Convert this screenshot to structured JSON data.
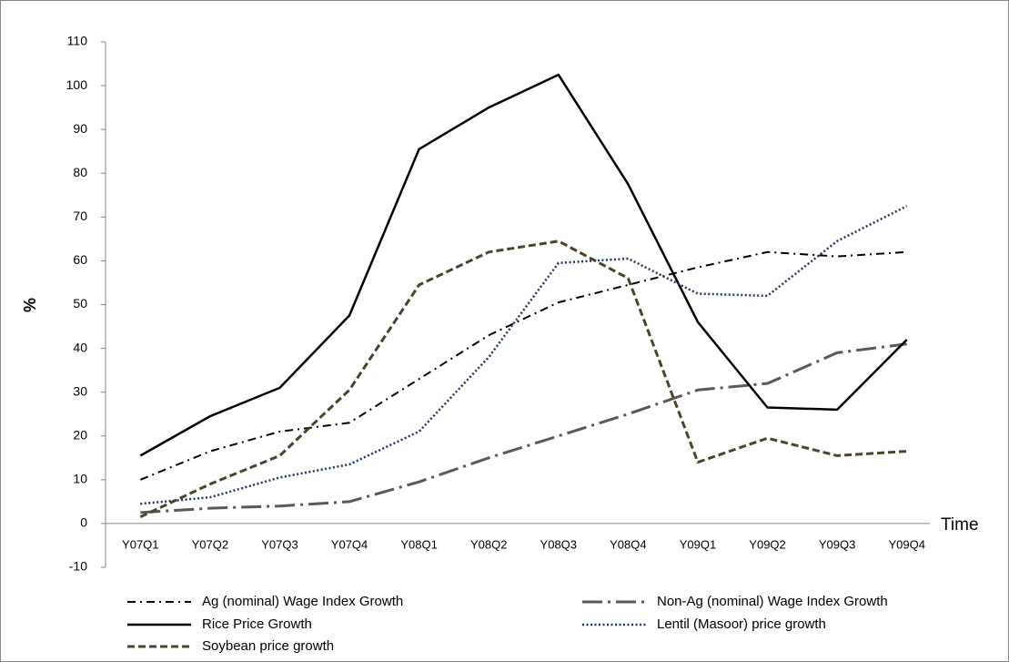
{
  "chart_data": {
    "type": "line",
    "ylabel": "%",
    "xlabel": "Time",
    "categories": [
      "Y07Q1",
      "Y07Q2",
      "Y07Q3",
      "Y07Q4",
      "Y08Q1",
      "Y08Q2",
      "Y08Q3",
      "Y08Q4",
      "Y09Q1",
      "Y09Q2",
      "Y09Q3",
      "Y09Q4"
    ],
    "series": [
      {
        "name": "Ag (nominal) Wage Index Growth",
        "color": "#000000",
        "values": [
          10,
          16.5,
          21,
          23,
          33,
          43,
          50.5,
          54.5,
          58.5,
          62,
          61,
          62
        ]
      },
      {
        "name": "Non-Ag (nominal) Wage Index Growth",
        "color": "#595959",
        "values": [
          2.5,
          3.5,
          4,
          5,
          9.5,
          15,
          20,
          25,
          30.5,
          32,
          39,
          41
        ]
      },
      {
        "name": "Rice Price Growth",
        "color": "#000000",
        "values": [
          15.5,
          24.5,
          31,
          47.5,
          85.5,
          95,
          102.5,
          77.5,
          46,
          26.5,
          26,
          42
        ]
      },
      {
        "name": "Lentil (Masoor) price growth",
        "color": "#1f3864",
        "values": [
          4.5,
          6,
          10.5,
          13.5,
          21,
          38,
          59.5,
          60.5,
          52.5,
          52,
          64.5,
          72.5
        ]
      },
      {
        "name": "Soybean price growth",
        "color": "#4d4329",
        "values": [
          1.5,
          9,
          15.5,
          30.5,
          54.5,
          62,
          64.5,
          56,
          14,
          19.5,
          15.5,
          16.5
        ]
      }
    ],
    "ylim": [
      -10,
      110
    ],
    "yticks": [
      -10,
      0,
      10,
      20,
      30,
      40,
      50,
      60,
      70,
      80,
      90,
      100,
      110
    ],
    "grid": false
  }
}
